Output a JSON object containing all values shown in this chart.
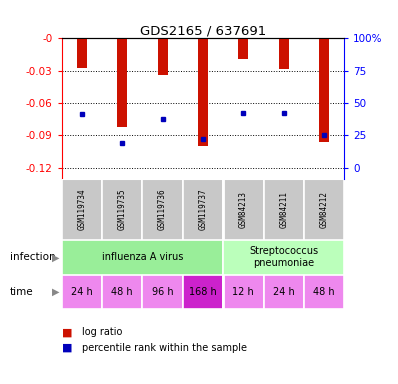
{
  "title": "GDS2165 / 637691",
  "samples": [
    "GSM119734",
    "GSM119735",
    "GSM119736",
    "GSM119737",
    "GSM84213",
    "GSM84211",
    "GSM84212"
  ],
  "log_ratios": [
    -0.027,
    -0.082,
    -0.034,
    -0.1,
    -0.019,
    -0.028,
    -0.096
  ],
  "percentile_ranks_y": [
    -0.07,
    -0.097,
    -0.075,
    -0.093,
    -0.069,
    -0.069,
    -0.09
  ],
  "ylim_left": [
    -0.13,
    0.0
  ],
  "yticks_left": [
    0.0,
    -0.03,
    -0.06,
    -0.09,
    -0.12
  ],
  "ytick_left_labels": [
    "-0",
    "-0.03",
    "-0.06",
    "-0.09",
    "-0.12"
  ],
  "yticks_right_labels": [
    "100%",
    "75",
    "50",
    "25",
    "0"
  ],
  "yticks_right_vals": [
    0.0,
    -0.03,
    -0.06,
    -0.09,
    -0.12
  ],
  "bar_color": "#cc1100",
  "dot_color": "#0000bb",
  "bar_width": 0.25,
  "infection_groups": [
    {
      "label": "influenza A virus",
      "start": 0,
      "end": 4,
      "color": "#99ee99"
    },
    {
      "label": "Streptococcus\npneumoniae",
      "start": 4,
      "end": 7,
      "color": "#bbffbb"
    }
  ],
  "time_labels": [
    "24 h",
    "48 h",
    "96 h",
    "168 h",
    "12 h",
    "24 h",
    "48 h"
  ],
  "time_colors": [
    "#ee88ee",
    "#ee88ee",
    "#ee88ee",
    "#cc22cc",
    "#ee88ee",
    "#ee88ee",
    "#ee88ee"
  ],
  "sample_bg_color": "#c8c8c8",
  "infection_row_label": "infection",
  "time_row_label": "time",
  "legend_red_label": "log ratio",
  "legend_blue_label": "percentile rank within the sample",
  "grid_color": "black",
  "arrow_color": "#888888"
}
